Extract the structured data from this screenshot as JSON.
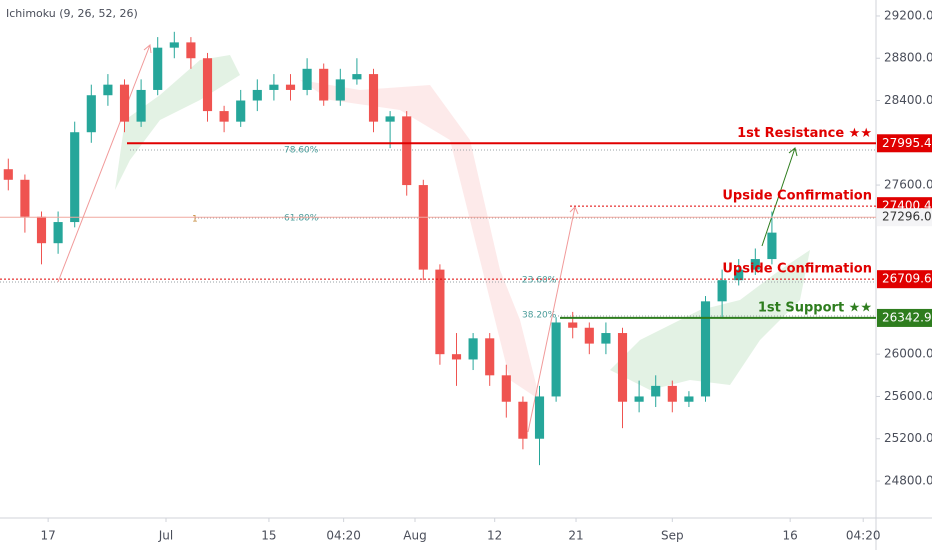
{
  "chart_data": {
    "type": "candlestick",
    "indicator": "Ichimoku (9, 26, 52, 26)",
    "up_color": "#26a69a",
    "down_color": "#ef5350",
    "xlim": [
      -0.5,
      52.27
    ],
    "xticks": [
      {
        "value": 2.4,
        "label": "17"
      },
      {
        "value": 9.5,
        "label": "Jul"
      },
      {
        "value": 15.7,
        "label": "15"
      },
      {
        "value": 20.2,
        "label": "04:20"
      },
      {
        "value": 24.5,
        "label": "Aug"
      },
      {
        "value": 29.3,
        "label": "12"
      },
      {
        "value": 34.2,
        "label": "21"
      },
      {
        "value": 40.0,
        "label": "Sep"
      },
      {
        "value": 47.1,
        "label": "16"
      },
      {
        "value": 51.5,
        "label": "04:20"
      }
    ],
    "ylim": [
      24450,
      29351
    ],
    "yticks": [
      {
        "value": 24800,
        "label": "24800.0"
      },
      {
        "value": 25200,
        "label": "25200.0"
      },
      {
        "value": 25600,
        "label": "25600.0"
      },
      {
        "value": 26000,
        "label": "26000.0"
      },
      {
        "value": 27600,
        "label": "27600.0"
      },
      {
        "value": 28400,
        "label": "28400.0"
      },
      {
        "value": 28800,
        "label": "28800.0"
      },
      {
        "value": 29200,
        "label": "29200.0"
      }
    ],
    "open": [
      27750,
      27650,
      27300,
      27050,
      27250,
      28100,
      28450,
      28550,
      28200,
      28500,
      28900,
      28950,
      28800,
      28300,
      28200,
      28400,
      28500,
      28550,
      28500,
      28700,
      28400,
      28600,
      28650,
      28200,
      28250,
      27600,
      26800,
      26000,
      25950,
      26150,
      25800,
      25550,
      25200,
      25600,
      26300,
      26250,
      26100,
      26200,
      25550,
      25600,
      25700,
      25550,
      25600,
      26500,
      26700,
      26800,
      26900
    ],
    "close": [
      27650,
      27300,
      27050,
      27250,
      28100,
      28450,
      28550,
      28200,
      28500,
      28900,
      28950,
      28800,
      28300,
      28200,
      28400,
      28500,
      28550,
      28500,
      28700,
      28400,
      28600,
      28650,
      28200,
      28250,
      27600,
      26800,
      26000,
      25950,
      26150,
      25800,
      25550,
      25200,
      25600,
      26300,
      26250,
      26100,
      26200,
      25550,
      25600,
      25700,
      25550,
      25600,
      26500,
      26700,
      26800,
      26900,
      27150
    ],
    "high": [
      27850,
      27700,
      27350,
      27350,
      28200,
      28550,
      28650,
      28600,
      28600,
      29000,
      29050,
      29000,
      28850,
      28350,
      28500,
      28600,
      28650,
      28650,
      28800,
      28750,
      28700,
      28800,
      28700,
      28300,
      28300,
      27650,
      26850,
      26200,
      26200,
      26200,
      25900,
      25600,
      25700,
      26350,
      26400,
      26300,
      26300,
      26250,
      25750,
      25800,
      25750,
      25650,
      26550,
      26800,
      26900,
      27000,
      27350
    ],
    "low": [
      27550,
      27150,
      26850,
      26950,
      27200,
      28000,
      28350,
      28100,
      28150,
      28450,
      28800,
      28700,
      28200,
      28100,
      28150,
      28300,
      28400,
      28400,
      28450,
      28350,
      28350,
      28550,
      28100,
      27950,
      27500,
      26700,
      25900,
      25700,
      25850,
      25700,
      25400,
      25100,
      24950,
      25550,
      26150,
      26000,
      26000,
      25300,
      25450,
      25500,
      25450,
      25500,
      25550,
      26350,
      26650,
      26750,
      26850
    ],
    "levels": [
      {
        "value": 27995.4,
        "label": "27995.4",
        "name": "1st Resistance ★★",
        "color": "#e00000",
        "style": "solid"
      },
      {
        "value": 27400.4,
        "label": "27400.4",
        "name": "Upside Confirmation",
        "color": "#e00000",
        "style": "dotted"
      },
      {
        "value": 27296.0,
        "label": "27296.0",
        "color": "#f0a89f",
        "style": "solid"
      },
      {
        "value": 26709.6,
        "label": "26709.6",
        "name": "Upside Confirmation",
        "color": "#e00000",
        "style": "dotted"
      },
      {
        "value": 26342.9,
        "label": "26342.9",
        "name": "1st Support ★★",
        "color": "#2e7d1e",
        "style": "solid"
      }
    ],
    "annotations": [
      "78.60%",
      "61.80%",
      "23.60%",
      "38.20%",
      "1"
    ]
  }
}
